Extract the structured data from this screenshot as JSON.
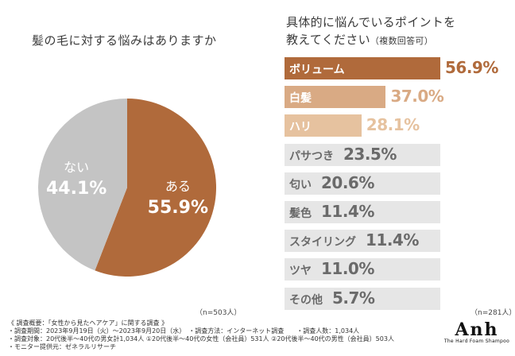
{
  "pie_title": "髪の毛に対する悩みはありますか",
  "bar_title_line1": "具体的に悩んでいるポイントを",
  "bar_title_line2": "教えてください",
  "bar_title_note": "（複数回答可）",
  "pie_n": "（n=503人）",
  "bar_n": "（n=281人）",
  "colors": {
    "brown": "#b06a3b",
    "tan": "#d9aa84",
    "light_tan": "#e6c29f",
    "gray_slice": "#c4c4c4",
    "track": "#e6e6e6",
    "gray_text": "#6a6a6a"
  },
  "chart_data": [
    {
      "type": "pie",
      "title": "髪の毛に対する悩みはありますか",
      "slices": [
        {
          "label": "ある",
          "value": 55.9,
          "display": "55.9%",
          "color": "#b06a3b"
        },
        {
          "label": "ない",
          "value": 44.1,
          "display": "44.1%",
          "color": "#c4c4c4"
        }
      ],
      "n": "n=503人"
    },
    {
      "type": "bar",
      "orientation": "horizontal",
      "title": "具体的に悩んでいるポイントを教えてください（複数回答可）",
      "categories": [
        "ボリューム",
        "白髪",
        "ハリ",
        "パサつき",
        "匂い",
        "髪色",
        "スタイリング",
        "ツヤ",
        "その他"
      ],
      "values": [
        56.9,
        37.0,
        28.1,
        23.5,
        20.6,
        11.4,
        11.4,
        11.0,
        5.7
      ],
      "display": [
        "56.9%",
        "37.0%",
        "28.1%",
        "23.5%",
        "20.6%",
        "11.4%",
        "11.4%",
        "11.0%",
        "5.7%"
      ],
      "n": "n=281人"
    }
  ],
  "survey": {
    "line1": "《 調査概要：「女性から見たヘアケア」に関する調査 》",
    "line2": "・調査期間：2023年9月19日（火）〜2023年9月20日（水）　・調査方法：インターネット調査　　・調査人数：1,034人",
    "line3": "・調査対象：20代後半〜40代の男女計1,034人 ①20代後半〜40代の女性（会社員）531人 ②20代後半〜40代の男性（会社員）503人",
    "line4": "・モニター提供元：ゼネラルリサーチ"
  },
  "logo": {
    "main": "Anh",
    "sub": "The Hard Foam Shampoo"
  }
}
